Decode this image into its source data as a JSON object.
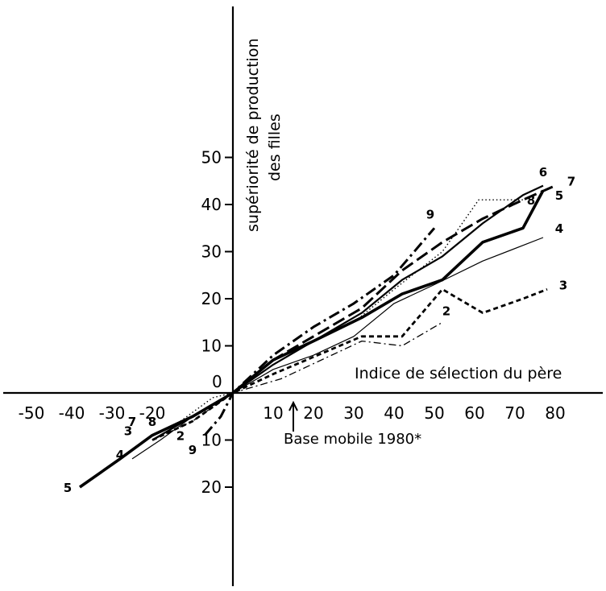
{
  "chart_data": {
    "type": "line",
    "title": "",
    "xlabel": "Indice de sélection du père",
    "ylabel_lines": [
      "supériorité de production",
      "des filles"
    ],
    "xlim": [
      -55,
      90
    ],
    "ylim": [
      -22,
      52
    ],
    "x_ticks": [
      -50,
      -40,
      -30,
      -20,
      10,
      20,
      30,
      40,
      50,
      60,
      70,
      80
    ],
    "x_tick_labels": [
      "-50",
      "-40",
      "-30",
      "-20",
      "10",
      "20",
      "30",
      "40",
      "50",
      "60",
      "70",
      "80"
    ],
    "y_ticks": [
      50,
      40,
      30,
      20,
      10,
      -10,
      -20
    ],
    "y_tick_labels": [
      "50",
      "40",
      "30",
      "20",
      "10",
      "10",
      "20"
    ],
    "origin_label": "0",
    "annotation": {
      "text": "Base mobile 1980*",
      "arrow_x": 15
    },
    "grid": false,
    "series": [
      {
        "name": "2",
        "style": "dashdot-thin",
        "x": [
          -20,
          -10,
          0,
          12,
          32,
          42,
          52
        ],
        "y": [
          -10,
          -6,
          0,
          3,
          11,
          10,
          15
        ],
        "label_at": [
          53,
          16.5
        ]
      },
      {
        "name": "3",
        "style": "dashed-bold",
        "x": [
          -20,
          -10,
          0,
          10,
          32,
          42,
          52,
          62,
          72,
          78
        ],
        "y": [
          -10,
          -6,
          0,
          4,
          12,
          12,
          22,
          17,
          20,
          22
        ],
        "label_at": [
          82,
          22
        ]
      },
      {
        "name": "4",
        "style": "solid-thin",
        "x": [
          -25,
          -18,
          -10,
          0,
          10,
          20,
          30,
          40,
          50,
          62,
          77
        ],
        "y": [
          -14,
          -10,
          -5,
          0,
          5,
          8,
          12,
          19,
          23,
          28,
          33
        ],
        "label_at": [
          81,
          34
        ]
      },
      {
        "name": "5",
        "style": "solid-bold",
        "x": [
          -38,
          -28,
          -20,
          -10,
          0,
          10,
          20,
          32,
          42,
          52,
          62,
          72,
          77
        ],
        "y": [
          -20,
          -14,
          -9,
          -5,
          0,
          7,
          11,
          16,
          21,
          24,
          32,
          35,
          43
        ],
        "label_at": [
          81,
          41
        ]
      },
      {
        "name": "6",
        "style": "solid-medium",
        "x": [
          -20,
          -10,
          0,
          10,
          22,
          32,
          42,
          52,
          62,
          72,
          77
        ],
        "y": [
          -10,
          -5,
          0,
          6,
          12,
          17,
          24,
          29,
          36,
          42,
          44
        ],
        "label_at": [
          77,
          46
        ]
      },
      {
        "name": "7",
        "style": "longdash-bold",
        "x": [
          -20,
          -10,
          0,
          10,
          20,
          32,
          42,
          52,
          62,
          72,
          80
        ],
        "y": [
          -9,
          -5,
          0,
          7,
          12,
          18,
          26,
          32,
          37,
          41,
          44
        ],
        "label_at": [
          84,
          44
        ]
      },
      {
        "name": "8",
        "style": "dotted-thin",
        "x": [
          -13,
          -5,
          0,
          10,
          20,
          30,
          40,
          52,
          61,
          72
        ],
        "y": [
          -6,
          -1,
          0,
          6,
          11,
          15,
          22,
          30,
          41,
          41
        ],
        "label_at": [
          74,
          40
        ]
      },
      {
        "name": "9",
        "style": "dashdot-bold",
        "x": [
          -7,
          -3,
          0,
          10,
          20,
          30,
          40,
          50
        ],
        "y": [
          -9,
          -5,
          0,
          8,
          14,
          19,
          25,
          35
        ],
        "label_at": [
          49,
          37
        ]
      }
    ],
    "left_labels": [
      {
        "name": "7",
        "x": -25,
        "y": -7
      },
      {
        "name": "8",
        "x": -20,
        "y": -7
      },
      {
        "name": "3",
        "x": -26,
        "y": -9
      },
      {
        "name": "2",
        "x": -13,
        "y": -10
      },
      {
        "name": "9",
        "x": -10,
        "y": -13
      },
      {
        "name": "4",
        "x": -28,
        "y": -14
      },
      {
        "name": "5",
        "x": -41,
        "y": -21
      }
    ]
  }
}
